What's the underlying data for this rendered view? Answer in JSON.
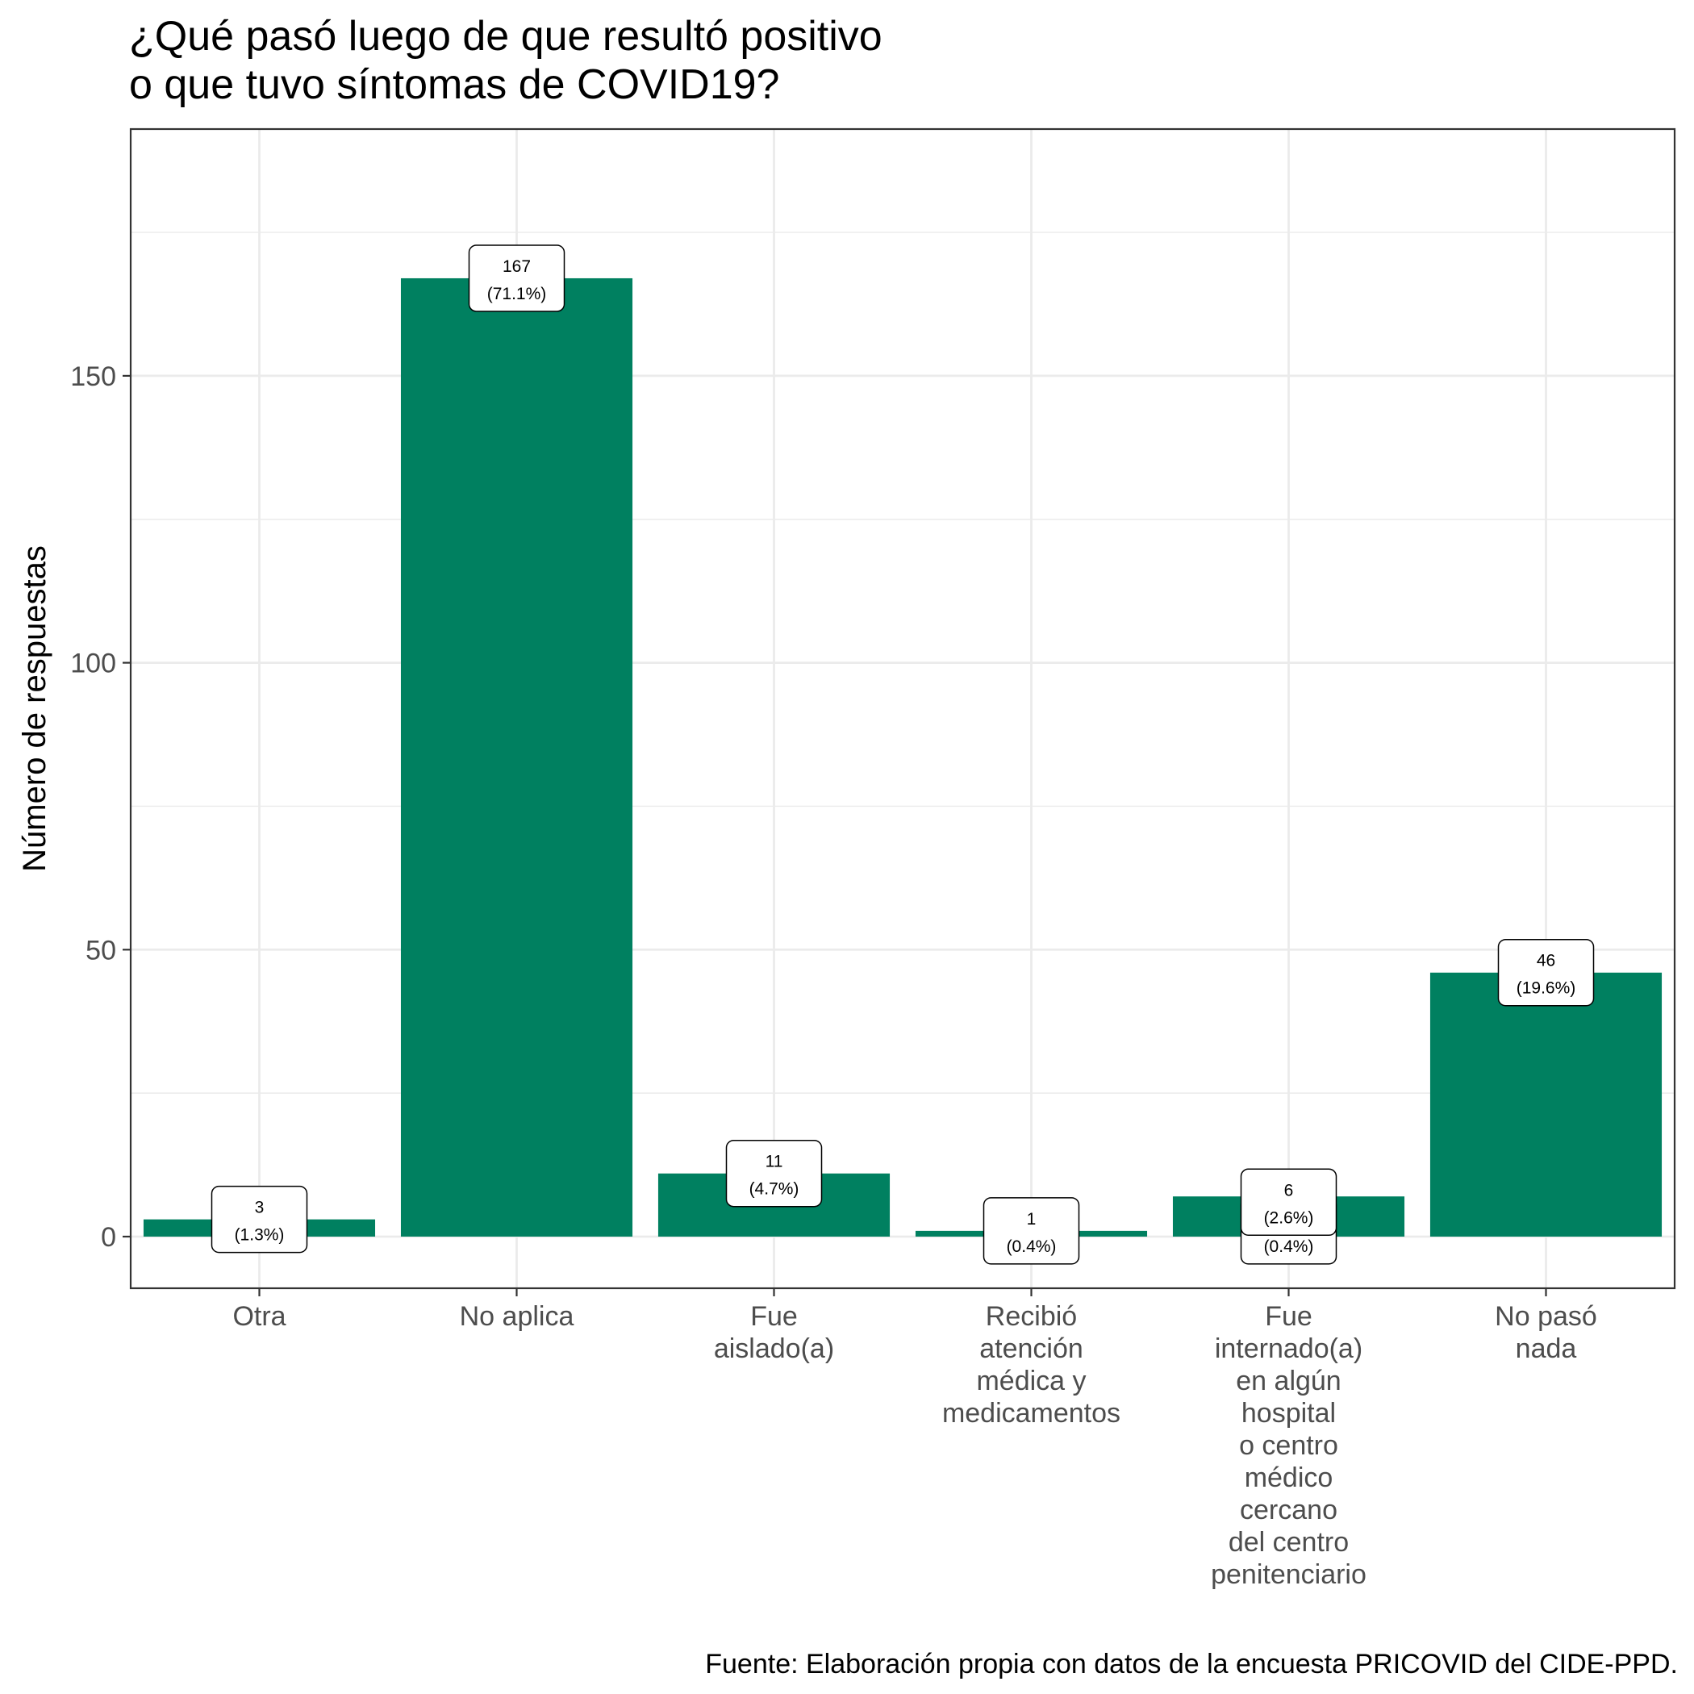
{
  "chart_data": {
    "type": "bar",
    "title": [
      "¿Qué pasó luego de que resultó positivo",
      "o que tuvo síntomas de COVID19?"
    ],
    "xlabel": "",
    "ylabel": "Número de respuestas",
    "caption": "Fuente: Elaboración propia con datos de la encuesta PRICOVID del CIDE-PPD.",
    "categories": [
      [
        "Otra"
      ],
      [
        "No aplica"
      ],
      [
        "Fue",
        "aislado(a)"
      ],
      [
        "Recibió",
        "atención",
        "médica y",
        "medicamentos"
      ],
      [
        "Fue",
        "internado(a)",
        "en algún",
        "hospital",
        "o centro",
        "médico",
        "cercano",
        "del centro",
        "penitenciario"
      ],
      [
        "No pasó",
        "nada"
      ]
    ],
    "values": [
      3,
      167,
      11,
      1,
      7,
      46
    ],
    "ylim": [
      -9,
      193
    ],
    "yticks": [
      0,
      50,
      100,
      150
    ],
    "grid": true,
    "bar_color": "#008060",
    "labels": [
      {
        "category_index": 0,
        "y": 3,
        "count": "3",
        "pct": "(1.3%)"
      },
      {
        "category_index": 1,
        "y": 167,
        "count": "167",
        "pct": "(71.1%)"
      },
      {
        "category_index": 2,
        "y": 11,
        "count": "11",
        "pct": "(4.7%)"
      },
      {
        "category_index": 3,
        "y": 1,
        "count": "1",
        "pct": "(0.4%)"
      },
      {
        "category_index": 4,
        "y": 1,
        "count": "1",
        "pct": "(0.4%)"
      },
      {
        "category_index": 4,
        "y": 6,
        "count": "6",
        "pct": "(2.6%)"
      },
      {
        "category_index": 5,
        "y": 46,
        "count": "46",
        "pct": "(19.6%)"
      }
    ]
  }
}
